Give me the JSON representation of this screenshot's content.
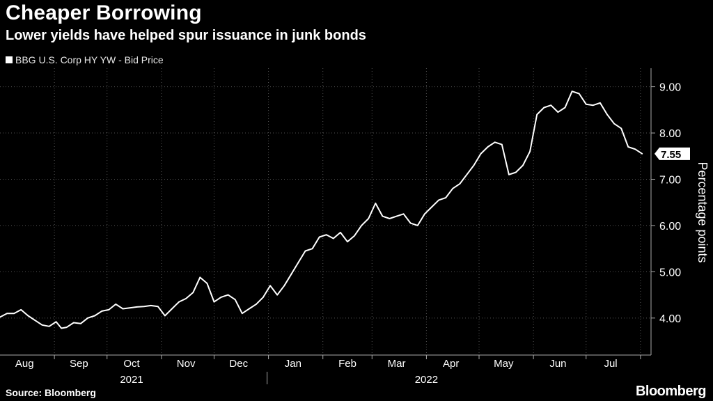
{
  "title": "Cheaper Borrowing",
  "subtitle": "Lower yields have helped spur issuance in junk bonds",
  "source": "Source: Bloomberg",
  "brand": "Bloomberg",
  "chart_data": {
    "type": "line",
    "legend": [
      "BBG U.S. Corp HY YW - Bid Price"
    ],
    "ylabel": "Percentage points",
    "ylim": [
      3.2,
      9.4
    ],
    "yticks": [
      4.0,
      5.0,
      6.0,
      7.0,
      8.0,
      9.0
    ],
    "ytick_labels": [
      "4.00",
      "5.00",
      "6.00",
      "7.00",
      "8.00",
      "9.00"
    ],
    "xlim": [
      "2021-08-01",
      "2022-08-07"
    ],
    "month_labels": [
      {
        "date": "2021-08-15",
        "label": "Aug"
      },
      {
        "date": "2021-09-15",
        "label": "Sep"
      },
      {
        "date": "2021-10-15",
        "label": "Oct"
      },
      {
        "date": "2021-11-15",
        "label": "Nov"
      },
      {
        "date": "2021-12-15",
        "label": "Dec"
      },
      {
        "date": "2022-01-15",
        "label": "Jan"
      },
      {
        "date": "2022-02-15",
        "label": "Feb"
      },
      {
        "date": "2022-03-15",
        "label": "Mar"
      },
      {
        "date": "2022-04-15",
        "label": "Apr"
      },
      {
        "date": "2022-05-15",
        "label": "May"
      },
      {
        "date": "2022-06-15",
        "label": "Jun"
      },
      {
        "date": "2022-07-15",
        "label": "Jul"
      }
    ],
    "year_labels": [
      {
        "date": "2021-10-15",
        "label": "2021"
      },
      {
        "date": "2022-04-01",
        "label": "2022"
      }
    ],
    "grid": true,
    "last_value_label": "7.55",
    "colors": {
      "line": "#ffffff",
      "grid": "#555555",
      "background": "#000000"
    },
    "series": [
      {
        "name": "BBG U.S. Corp HY YW - Bid Price",
        "x": [
          "2021-08-01",
          "2021-08-05",
          "2021-08-09",
          "2021-08-13",
          "2021-08-17",
          "2021-08-21",
          "2021-08-25",
          "2021-08-29",
          "2021-09-02",
          "2021-09-05",
          "2021-09-08",
          "2021-09-12",
          "2021-09-16",
          "2021-09-20",
          "2021-09-24",
          "2021-09-28",
          "2021-10-02",
          "2021-10-06",
          "2021-10-10",
          "2021-10-14",
          "2021-10-18",
          "2021-10-22",
          "2021-10-26",
          "2021-10-30",
          "2021-11-03",
          "2021-11-07",
          "2021-11-11",
          "2021-11-15",
          "2021-11-19",
          "2021-11-23",
          "2021-11-27",
          "2021-12-01",
          "2021-12-05",
          "2021-12-09",
          "2021-12-13",
          "2021-12-17",
          "2021-12-21",
          "2021-12-25",
          "2021-12-29",
          "2022-01-02",
          "2022-01-06",
          "2022-01-10",
          "2022-01-14",
          "2022-01-18",
          "2022-01-22",
          "2022-01-26",
          "2022-01-30",
          "2022-02-03",
          "2022-02-07",
          "2022-02-11",
          "2022-02-15",
          "2022-02-19",
          "2022-02-23",
          "2022-02-27",
          "2022-03-03",
          "2022-03-07",
          "2022-03-11",
          "2022-03-15",
          "2022-03-19",
          "2022-03-23",
          "2022-03-27",
          "2022-03-31",
          "2022-04-04",
          "2022-04-08",
          "2022-04-12",
          "2022-04-16",
          "2022-04-20",
          "2022-04-24",
          "2022-04-28",
          "2022-05-02",
          "2022-05-06",
          "2022-05-10",
          "2022-05-14",
          "2022-05-18",
          "2022-05-22",
          "2022-05-26",
          "2022-05-30",
          "2022-06-03",
          "2022-06-07",
          "2022-06-11",
          "2022-06-15",
          "2022-06-19",
          "2022-06-23",
          "2022-06-27",
          "2022-07-01",
          "2022-07-05",
          "2022-07-09",
          "2022-07-13",
          "2022-07-17",
          "2022-07-21",
          "2022-07-25",
          "2022-07-29",
          "2022-08-02"
        ],
        "values": [
          4.02,
          4.1,
          4.1,
          4.18,
          4.05,
          3.95,
          3.85,
          3.82,
          3.92,
          3.78,
          3.8,
          3.9,
          3.88,
          4.0,
          4.05,
          4.15,
          4.18,
          4.3,
          4.2,
          4.22,
          4.24,
          4.25,
          4.27,
          4.25,
          4.05,
          4.2,
          4.35,
          4.42,
          4.55,
          4.88,
          4.75,
          4.35,
          4.45,
          4.5,
          4.4,
          4.1,
          4.2,
          4.3,
          4.45,
          4.7,
          4.5,
          4.7,
          4.95,
          5.2,
          5.45,
          5.5,
          5.75,
          5.8,
          5.72,
          5.85,
          5.65,
          5.78,
          6.0,
          6.15,
          6.48,
          6.2,
          6.15,
          6.2,
          6.25,
          6.05,
          6.0,
          6.25,
          6.4,
          6.55,
          6.6,
          6.8,
          6.9,
          7.1,
          7.3,
          7.55,
          7.7,
          7.8,
          7.75,
          7.1,
          7.15,
          7.3,
          7.6,
          8.4,
          8.55,
          8.6,
          8.45,
          8.55,
          8.9,
          8.85,
          8.62,
          8.6,
          8.65,
          8.4,
          8.2,
          8.1,
          7.7,
          7.65,
          7.55
        ]
      }
    ]
  }
}
